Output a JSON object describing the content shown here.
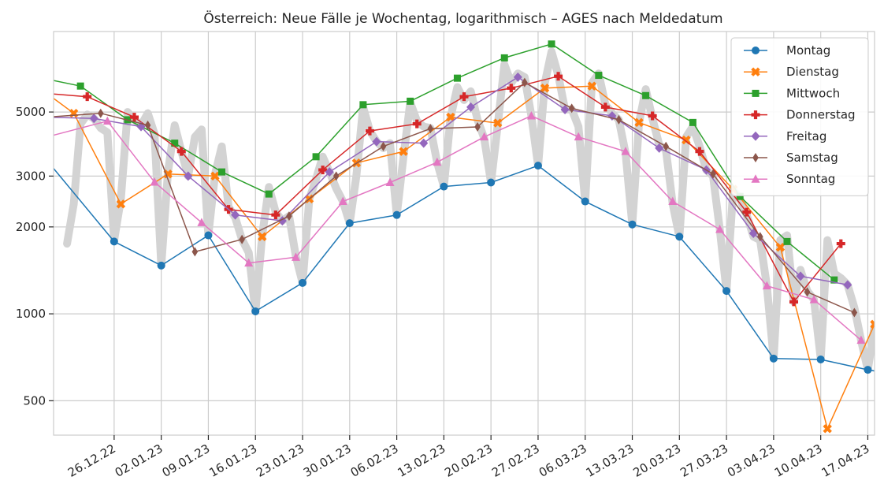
{
  "chart_data": {
    "type": "line",
    "title": "Österreich: Neue Fälle je Wochentag, logarithmisch – AGES nach Meldedatum",
    "xlabel": "",
    "ylabel": "",
    "x_scale": "time",
    "x_range": [
      "2022-12-17",
      "2023-04-18"
    ],
    "y_scale": "log",
    "ylim": [
      380,
      9500
    ],
    "grid": true,
    "legend_position": "top-right",
    "x_ticks": [
      "2022-12-26",
      "2023-01-02",
      "2023-01-09",
      "2023-01-16",
      "2023-01-23",
      "2023-01-30",
      "2023-02-06",
      "2023-02-13",
      "2023-02-20",
      "2023-02-27",
      "2023-03-06",
      "2023-03-13",
      "2023-03-20",
      "2023-03-27",
      "2023-04-03",
      "2023-04-10",
      "2023-04-17"
    ],
    "x_tick_labels": [
      "26.12.22",
      "02.01.23",
      "09.01.23",
      "16.01.23",
      "23.01.23",
      "30.01.23",
      "06.02.23",
      "13.02.23",
      "20.02.23",
      "27.02.23",
      "06.03.23",
      "13.03.23",
      "20.03.23",
      "27.03.23",
      "03.04.23",
      "10.04.23",
      "17.04.23"
    ],
    "y_ticks": [
      500,
      1000,
      2000,
      3000,
      5000
    ],
    "y_tick_labels": [
      "500",
      "1000",
      "2000",
      "3000",
      "5000"
    ],
    "background_series": {
      "color": "#d3d3d3",
      "x": [
        "2022-12-19",
        "2022-12-20",
        "2022-12-21",
        "2022-12-22",
        "2022-12-23",
        "2022-12-24",
        "2022-12-25",
        "2022-12-26",
        "2022-12-27",
        "2022-12-28",
        "2022-12-29",
        "2022-12-30",
        "2022-12-31",
        "2023-01-01",
        "2023-01-02",
        "2023-01-03",
        "2023-01-04",
        "2023-01-05",
        "2023-01-06",
        "2023-01-07",
        "2023-01-08",
        "2023-01-09",
        "2023-01-10",
        "2023-01-11",
        "2023-01-12",
        "2023-01-13",
        "2023-01-14",
        "2023-01-15",
        "2023-01-16",
        "2023-01-17",
        "2023-01-18",
        "2023-01-19",
        "2023-01-20",
        "2023-01-21",
        "2023-01-22",
        "2023-01-23",
        "2023-01-24",
        "2023-01-25",
        "2023-01-26",
        "2023-01-27",
        "2023-01-28",
        "2023-01-29",
        "2023-01-30",
        "2023-01-31",
        "2023-02-01",
        "2023-02-02",
        "2023-02-03",
        "2023-02-04",
        "2023-02-05",
        "2023-02-06",
        "2023-02-07",
        "2023-02-08",
        "2023-02-09",
        "2023-02-10",
        "2023-02-11",
        "2023-02-12",
        "2023-02-13",
        "2023-02-14",
        "2023-02-15",
        "2023-02-16",
        "2023-02-17",
        "2023-02-18",
        "2023-02-19",
        "2023-02-20",
        "2023-02-21",
        "2023-02-22",
        "2023-02-23",
        "2023-02-24",
        "2023-02-25",
        "2023-02-26",
        "2023-02-27",
        "2023-02-28",
        "2023-03-01",
        "2023-03-02",
        "2023-03-03",
        "2023-03-04",
        "2023-03-05",
        "2023-03-06",
        "2023-03-07",
        "2023-03-08",
        "2023-03-09",
        "2023-03-10",
        "2023-03-11",
        "2023-03-12",
        "2023-03-13",
        "2023-03-14",
        "2023-03-15",
        "2023-03-16",
        "2023-03-17",
        "2023-03-18",
        "2023-03-19",
        "2023-03-20",
        "2023-03-21",
        "2023-03-22",
        "2023-03-23",
        "2023-03-24",
        "2023-03-25",
        "2023-03-26",
        "2023-03-27",
        "2023-03-28",
        "2023-03-29",
        "2023-03-30",
        "2023-03-31",
        "2023-04-01",
        "2023-04-02",
        "2023-04-03",
        "2023-04-04",
        "2023-04-05",
        "2023-04-06",
        "2023-04-07",
        "2023-04-08",
        "2023-04-09",
        "2023-04-10",
        "2023-04-11",
        "2023-04-12",
        "2023-04-13",
        "2023-04-14",
        "2023-04-15",
        "2023-04-16",
        "2023-04-17",
        "2023-04-18"
      ],
      "values": [
        1750,
        2400,
        4550,
        4900,
        4750,
        4400,
        4250,
        1800,
        2500,
        5000,
        4700,
        4500,
        4950,
        4200,
        1470,
        3100,
        4500,
        3650,
        3000,
        4100,
        4350,
        1870,
        3050,
        3800,
        2350,
        2150,
        1810,
        1630,
        1020,
        1870,
        2750,
        2250,
        2100,
        2180,
        1580,
        1280,
        2500,
        2930,
        3500,
        3100,
        2720,
        2450,
        2060,
        3000,
        5200,
        4300,
        3950,
        3750,
        3900,
        2200,
        3500,
        5400,
        4650,
        4450,
        4400,
        3350,
        2760,
        4800,
        6100,
        5500,
        5900,
        4700,
        4050,
        2850,
        4500,
        7300,
        6300,
        6800,
        6600,
        4850,
        3260,
        6300,
        8100,
        6700,
        5100,
        5100,
        4450,
        2450,
        6300,
        6800,
        5300,
        4950,
        4700,
        3600,
        2040,
        4600,
        6000,
        4750,
        3850,
        3700,
        2400,
        1850,
        4100,
        4450,
        3800,
        3150,
        3000,
        1960,
        1200,
        2700,
        2500,
        2200,
        1850,
        1800,
        1250,
        700,
        1800,
        1870,
        1100,
        1420,
        1200,
        1120,
        700,
        1800,
        1380,
        1330,
        1260,
        1050,
        810,
        640,
        910
      ]
    },
    "series": [
      {
        "name": "Montag",
        "color": "#1f77b4",
        "marker": "circle",
        "x": [
          "2022-12-16",
          "2022-12-26",
          "2023-01-02",
          "2023-01-09",
          "2023-01-16",
          "2023-01-23",
          "2023-01-30",
          "2023-02-06",
          "2023-02-13",
          "2023-02-20",
          "2023-02-27",
          "2023-03-06",
          "2023-03-13",
          "2023-03-20",
          "2023-03-27",
          "2023-04-03",
          "2023-04-10",
          "2023-04-17",
          "2023-04-24"
        ],
        "values": [
          3400,
          1780,
          1470,
          1870,
          1020,
          1280,
          2060,
          2200,
          2760,
          2850,
          3260,
          2450,
          2040,
          1850,
          1200,
          700,
          695,
          640,
          600
        ]
      },
      {
        "name": "Dienstag",
        "color": "#ff7f0e",
        "marker": "x",
        "x": [
          "2022-12-16",
          "2022-12-20",
          "2022-12-27",
          "2023-01-03",
          "2023-01-10",
          "2023-01-17",
          "2023-01-24",
          "2023-01-31",
          "2023-02-07",
          "2023-02-14",
          "2023-02-21",
          "2023-02-28",
          "2023-03-07",
          "2023-03-14",
          "2023-03-21",
          "2023-03-28",
          "2023-04-04",
          "2023-04-11",
          "2023-04-18"
        ],
        "values": [
          5800,
          4950,
          2400,
          3050,
          3000,
          1850,
          2500,
          3330,
          3650,
          4800,
          4580,
          6050,
          6150,
          4600,
          4000,
          2700,
          1700,
          400,
          920
        ]
      },
      {
        "name": "Mittwoch",
        "color": "#2ca02c",
        "marker": "square",
        "x": [
          "2022-12-16",
          "2022-12-21",
          "2022-12-28",
          "2023-01-04",
          "2023-01-11",
          "2023-01-18",
          "2023-01-25",
          "2023-02-01",
          "2023-02-08",
          "2023-02-15",
          "2023-02-22",
          "2023-03-01",
          "2023-03-08",
          "2023-03-15",
          "2023-03-22",
          "2023-03-29",
          "2023-04-05",
          "2023-04-12"
        ],
        "values": [
          6500,
          6150,
          4700,
          3900,
          3100,
          2600,
          3500,
          5300,
          5450,
          6550,
          7700,
          8600,
          6700,
          5700,
          4600,
          2550,
          1780,
          1310
        ]
      },
      {
        "name": "Donnerstag",
        "color": "#d62728",
        "marker": "plus",
        "x": [
          "2022-12-16",
          "2022-12-22",
          "2022-12-29",
          "2023-01-05",
          "2023-01-12",
          "2023-01-19",
          "2023-01-26",
          "2023-02-02",
          "2023-02-09",
          "2023-02-16",
          "2023-02-23",
          "2023-03-02",
          "2023-03-09",
          "2023-03-16",
          "2023-03-23",
          "2023-03-30",
          "2023-04-06",
          "2023-04-13"
        ],
        "values": [
          5800,
          5650,
          4800,
          3650,
          2300,
          2200,
          3150,
          4300,
          4550,
          5650,
          6050,
          6650,
          5200,
          4850,
          3650,
          2250,
          1100,
          1750
        ]
      },
      {
        "name": "Freitag",
        "color": "#9467bd",
        "marker": "diamond",
        "x": [
          "2022-12-16",
          "2022-12-23",
          "2022-12-30",
          "2023-01-06",
          "2023-01-13",
          "2023-01-20",
          "2023-01-27",
          "2023-02-03",
          "2023-02-10",
          "2023-02-17",
          "2023-02-24",
          "2023-03-03",
          "2023-03-10",
          "2023-03-17",
          "2023-03-24",
          "2023-03-31",
          "2023-04-07",
          "2023-04-14"
        ],
        "values": [
          4800,
          4750,
          4450,
          3000,
          2200,
          2100,
          3100,
          3950,
          3900,
          5200,
          6600,
          5100,
          4850,
          3750,
          3150,
          1900,
          1350,
          1260
        ]
      },
      {
        "name": "Samstag",
        "color": "#8c564b",
        "marker": "thin-diamond",
        "x": [
          "2022-12-16",
          "2022-12-24",
          "2022-12-31",
          "2023-01-07",
          "2023-01-14",
          "2023-01-21",
          "2023-01-28",
          "2023-02-04",
          "2023-02-11",
          "2023-02-18",
          "2023-02-25",
          "2023-03-04",
          "2023-03-11",
          "2023-03-18",
          "2023-03-25",
          "2023-04-01",
          "2023-04-08",
          "2023-04-15"
        ],
        "values": [
          4800,
          4950,
          4500,
          1640,
          1810,
          2180,
          3000,
          3800,
          4380,
          4440,
          6330,
          5150,
          4700,
          3800,
          3050,
          1850,
          1190,
          1010
        ]
      },
      {
        "name": "Sonntag",
        "color": "#e377c2",
        "marker": "triangle",
        "x": [
          "2022-12-16",
          "2022-12-25",
          "2023-01-01",
          "2023-01-08",
          "2023-01-15",
          "2023-01-22",
          "2023-01-29",
          "2023-02-05",
          "2023-02-12",
          "2023-02-19",
          "2023-02-26",
          "2023-03-05",
          "2023-03-12",
          "2023-03-19",
          "2023-03-26",
          "2023-04-02",
          "2023-04-09",
          "2023-04-16"
        ],
        "values": [
          4100,
          4650,
          2860,
          2070,
          1500,
          1570,
          2450,
          2850,
          3350,
          4100,
          4850,
          4100,
          3650,
          2450,
          1960,
          1250,
          1120,
          810
        ]
      }
    ]
  }
}
